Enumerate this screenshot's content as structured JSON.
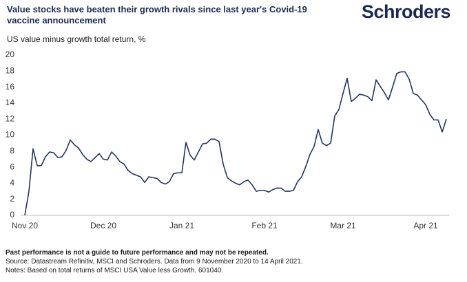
{
  "chart_data": {
    "type": "line",
    "title": "Value stocks have beaten their growth rivals since last year's Covid-19 vaccine announcement",
    "brand": "Schroders",
    "subtitle": "US value minus growth total return, %",
    "footnotes": [
      "Past performance is not a guide to future performance and may not be repeated.",
      "Source: Datastream Refinitiv, MSCI and Schroders. Data from 9 November 2020 to 14 April 2021.",
      "Notes: Based on total returns of MSCI USA Value less Growth. 601040."
    ],
    "categories": [
      "Nov 20",
      null,
      null,
      null,
      null,
      null,
      null,
      null,
      null,
      null,
      null,
      null,
      null,
      null,
      null,
      null,
      null,
      null,
      null,
      "Dec 20",
      null,
      null,
      null,
      null,
      null,
      null,
      null,
      null,
      null,
      null,
      null,
      null,
      null,
      null,
      null,
      null,
      null,
      null,
      "Jan 21",
      null,
      null,
      null,
      null,
      null,
      null,
      null,
      null,
      null,
      null,
      null,
      null,
      null,
      null,
      null,
      null,
      null,
      null,
      null,
      "Feb 21",
      null,
      null,
      null,
      null,
      null,
      null,
      null,
      null,
      null,
      null,
      null,
      null,
      null,
      null,
      null,
      null,
      null,
      null,
      "Mar 21",
      null,
      null,
      null,
      null,
      null,
      null,
      null,
      null,
      null,
      null,
      null,
      null,
      null,
      null,
      null,
      null,
      null,
      null,
      null,
      "Apr 21",
      null,
      null,
      null,
      null,
      null
    ],
    "series": [
      {
        "name": "US value minus growth",
        "color": "#1f3560",
        "values": [
          0,
          3,
          8.3,
          6.2,
          6.2,
          7.3,
          7.9,
          7.8,
          7.2,
          7.3,
          8.1,
          9.4,
          8.8,
          8.4,
          7.6,
          7.0,
          6.7,
          7.2,
          7.7,
          7.0,
          6.9,
          7.9,
          7.4,
          6.7,
          6.4,
          5.6,
          5.2,
          5.0,
          4.8,
          4.1,
          4.8,
          4.7,
          4.6,
          4.1,
          3.9,
          4.2,
          5.2,
          5.3,
          5.3,
          9.1,
          7.5,
          6.9,
          7.9,
          8.9,
          9.0,
          9.5,
          9.5,
          9.2,
          6.4,
          4.7,
          4.3,
          4.0,
          3.8,
          4.2,
          4.4,
          3.8,
          3.0,
          3.1,
          3.1,
          2.9,
          3.2,
          3.4,
          3.4,
          3.0,
          3.0,
          3.1,
          4.2,
          4.8,
          6.1,
          7.6,
          8.6,
          10.7,
          9.0,
          8.7,
          9.0,
          12.4,
          13.2,
          15.2,
          17.1,
          14.2,
          14.6,
          15.1,
          15.0,
          14.8,
          14.3,
          16.9,
          16.1,
          15.3,
          14.4,
          16.0,
          17.7,
          17.9,
          17.9,
          17.0,
          15.2,
          15.0,
          14.4,
          13.8,
          12.6,
          11.9,
          11.9,
          10.4,
          12.0
        ]
      }
    ],
    "ylim": [
      0,
      20
    ],
    "yticks": [
      0,
      2,
      4,
      6,
      8,
      10,
      12,
      14,
      16,
      18,
      20
    ],
    "grid": false
  }
}
